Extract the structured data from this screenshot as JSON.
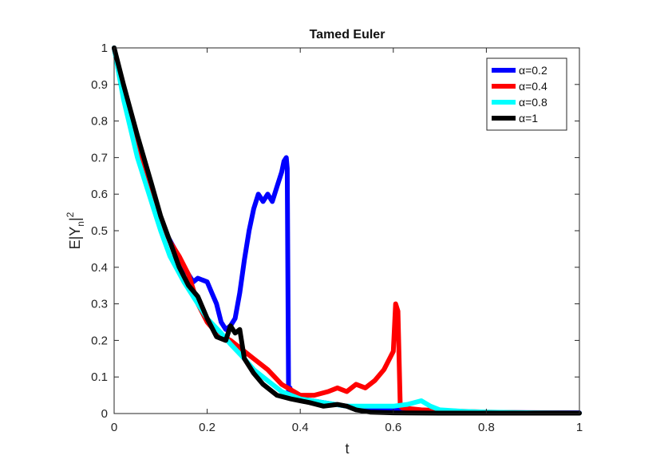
{
  "chart_data": {
    "type": "line",
    "title": "Tamed Euler",
    "xlabel": "t",
    "ylabel": "E|Y_n|^2",
    "xlim": [
      0,
      1
    ],
    "ylim": [
      0,
      1
    ],
    "xticks": [
      "0",
      "0.2",
      "0.4",
      "0.6",
      "0.8",
      "1"
    ],
    "yticks": [
      "0",
      "0.1",
      "0.2",
      "0.3",
      "0.4",
      "0.5",
      "0.6",
      "0.7",
      "0.8",
      "0.9",
      "1"
    ],
    "grid": false,
    "legend_position": "top-right",
    "series": [
      {
        "name": "α=0.2",
        "color": "#0000ff",
        "x": [
          0,
          0.02,
          0.05,
          0.08,
          0.1,
          0.13,
          0.15,
          0.17,
          0.18,
          0.2,
          0.21,
          0.22,
          0.23,
          0.24,
          0.25,
          0.26,
          0.27,
          0.28,
          0.29,
          0.3,
          0.31,
          0.32,
          0.33,
          0.34,
          0.35,
          0.36,
          0.365,
          0.37,
          0.372,
          0.375,
          0.378,
          0.38,
          0.4,
          0.45,
          0.5,
          0.55,
          0.6,
          0.7,
          0.8,
          1.0
        ],
        "y": [
          1.0,
          0.87,
          0.72,
          0.6,
          0.52,
          0.45,
          0.4,
          0.36,
          0.37,
          0.36,
          0.33,
          0.3,
          0.25,
          0.23,
          0.24,
          0.26,
          0.33,
          0.42,
          0.5,
          0.56,
          0.6,
          0.58,
          0.6,
          0.58,
          0.62,
          0.66,
          0.69,
          0.7,
          0.67,
          0.05,
          0.07,
          0.05,
          0.04,
          0.03,
          0.02,
          0.015,
          0.01,
          0.005,
          0.003,
          0.002
        ]
      },
      {
        "name": "α=0.4",
        "color": "#ff0000",
        "x": [
          0,
          0.02,
          0.05,
          0.08,
          0.1,
          0.12,
          0.14,
          0.16,
          0.18,
          0.2,
          0.22,
          0.25,
          0.28,
          0.3,
          0.33,
          0.36,
          0.4,
          0.43,
          0.46,
          0.48,
          0.5,
          0.52,
          0.54,
          0.56,
          0.58,
          0.6,
          0.605,
          0.61,
          0.615,
          0.62,
          0.66,
          0.7,
          0.8,
          0.9,
          1.0
        ],
        "y": [
          1.0,
          0.88,
          0.72,
          0.6,
          0.53,
          0.47,
          0.43,
          0.38,
          0.3,
          0.25,
          0.22,
          0.2,
          0.17,
          0.15,
          0.12,
          0.08,
          0.05,
          0.05,
          0.06,
          0.07,
          0.06,
          0.08,
          0.07,
          0.09,
          0.12,
          0.17,
          0.3,
          0.28,
          0.02,
          0.015,
          0.01,
          0.008,
          0.004,
          0.002,
          0.001
        ]
      },
      {
        "name": "α=0.8",
        "color": "#00ffff",
        "x": [
          0,
          0.02,
          0.05,
          0.08,
          0.1,
          0.12,
          0.15,
          0.18,
          0.2,
          0.23,
          0.25,
          0.28,
          0.3,
          0.33,
          0.36,
          0.4,
          0.45,
          0.5,
          0.55,
          0.6,
          0.63,
          0.66,
          0.68,
          0.7,
          0.75,
          0.8,
          0.9,
          1.0
        ],
        "y": [
          1.0,
          0.86,
          0.7,
          0.58,
          0.5,
          0.43,
          0.36,
          0.3,
          0.26,
          0.22,
          0.19,
          0.15,
          0.12,
          0.09,
          0.06,
          0.04,
          0.03,
          0.02,
          0.02,
          0.02,
          0.025,
          0.035,
          0.02,
          0.01,
          0.006,
          0.004,
          0.002,
          0.001
        ]
      },
      {
        "name": "α=1",
        "color": "#000000",
        "x": [
          0,
          0.02,
          0.05,
          0.08,
          0.1,
          0.12,
          0.14,
          0.16,
          0.18,
          0.2,
          0.22,
          0.24,
          0.25,
          0.26,
          0.27,
          0.28,
          0.3,
          0.32,
          0.35,
          0.38,
          0.4,
          0.42,
          0.45,
          0.48,
          0.5,
          0.52,
          0.55,
          0.6,
          0.7,
          0.8,
          1.0
        ],
        "y": [
          1.0,
          0.9,
          0.76,
          0.63,
          0.54,
          0.47,
          0.4,
          0.35,
          0.32,
          0.26,
          0.21,
          0.2,
          0.24,
          0.22,
          0.23,
          0.15,
          0.11,
          0.08,
          0.05,
          0.04,
          0.035,
          0.03,
          0.02,
          0.025,
          0.02,
          0.01,
          0.004,
          0.002,
          0.001,
          0.001,
          0.001
        ]
      }
    ]
  }
}
